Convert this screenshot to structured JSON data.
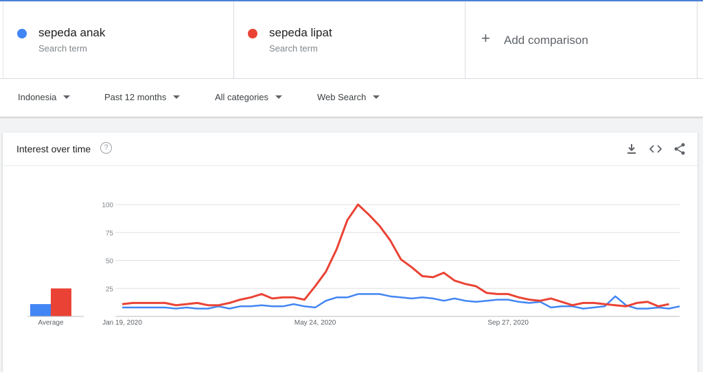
{
  "terms": [
    {
      "name": "sepeda anak",
      "sub": "Search term",
      "color": "#4285f4"
    },
    {
      "name": "sepeda lipat",
      "sub": "Search term",
      "color": "#ea4335"
    }
  ],
  "add_comparison": "Add comparison",
  "filters": {
    "region": "Indonesia",
    "time": "Past 12 months",
    "category": "All categories",
    "search_type": "Web Search"
  },
  "card": {
    "title": "Interest over time",
    "help": "?",
    "tools": [
      "download-icon",
      "embed-icon",
      "share-icon"
    ]
  },
  "chart_data": {
    "type": "line",
    "x_tick_labels": [
      "Jan 19, 2020",
      "May 24, 2020",
      "Sep 27, 2020"
    ],
    "y_ticks": [
      25,
      50,
      75,
      100
    ],
    "ylim": [
      0,
      100
    ],
    "grid": true,
    "average_label": "Average",
    "averages": {
      "sepeda anak": 11,
      "sepeda lipat": 25
    },
    "series": [
      {
        "name": "sepeda anak",
        "color": "#4285f4",
        "values": [
          8,
          8,
          8,
          8,
          8,
          7,
          8,
          7,
          7,
          9,
          7,
          9,
          9,
          10,
          9,
          9,
          11,
          9,
          8,
          14,
          17,
          17,
          20,
          20,
          20,
          18,
          17,
          16,
          17,
          16,
          14,
          16,
          14,
          13,
          14,
          15,
          15,
          13,
          12,
          13,
          8,
          9,
          9,
          7,
          8,
          9,
          18,
          10,
          7,
          7,
          8,
          7,
          9
        ]
      },
      {
        "name": "sepeda lipat",
        "color": "#ea4335",
        "values": [
          11,
          12,
          12,
          12,
          12,
          10,
          11,
          12,
          10,
          10,
          12,
          15,
          17,
          20,
          16,
          17,
          17,
          15,
          27,
          40,
          60,
          86,
          100,
          91,
          81,
          68,
          51,
          44,
          36,
          35,
          39,
          32,
          29,
          27,
          21,
          20,
          20,
          17,
          15,
          14,
          16,
          13,
          10,
          12,
          12,
          11,
          10,
          9,
          12,
          13,
          9,
          11,
          null
        ]
      }
    ]
  }
}
